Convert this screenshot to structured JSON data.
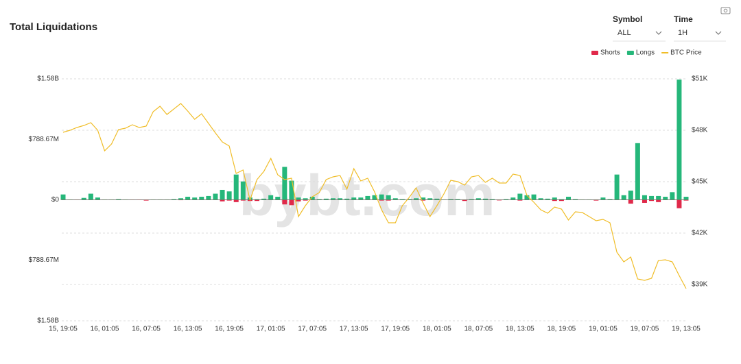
{
  "header": {
    "title": "Total Liquidations"
  },
  "controls": [
    {
      "label": "Symbol",
      "value": "ALL"
    },
    {
      "label": "Time",
      "value": "1H"
    }
  ],
  "watermark": "bybt.com",
  "chart_data": {
    "type": "bar",
    "categories": [
      "15, 19:05",
      null,
      null,
      null,
      null,
      null,
      "16, 01:05",
      null,
      null,
      null,
      null,
      null,
      "16, 07:05",
      null,
      null,
      null,
      null,
      null,
      "16, 13:05",
      null,
      null,
      null,
      null,
      null,
      "16, 19:05",
      null,
      null,
      null,
      null,
      null,
      "17, 01:05",
      null,
      null,
      null,
      null,
      null,
      "17, 07:05",
      null,
      null,
      null,
      null,
      null,
      "17, 13:05",
      null,
      null,
      null,
      null,
      null,
      "17, 19:05",
      null,
      null,
      null,
      null,
      null,
      "18, 01:05",
      null,
      null,
      null,
      null,
      null,
      "18, 07:05",
      null,
      null,
      null,
      null,
      null,
      "18, 13:05",
      null,
      null,
      null,
      null,
      null,
      "18, 19:05",
      null,
      null,
      null,
      null,
      null,
      "19, 01:05",
      null,
      null,
      null,
      null,
      null,
      "19, 07:05",
      null,
      null,
      null,
      null,
      null,
      "19, 13:05"
    ],
    "ylim": [
      -1580000000,
      1580000000
    ],
    "yticks": [
      {
        "value": 1580000000,
        "label": "$1.58B"
      },
      {
        "value": 788670000,
        "label": "$788.67M"
      },
      {
        "value": 0,
        "label": "$0"
      },
      {
        "value": -788670000,
        "label": "$788.67M"
      },
      {
        "value": -1580000000,
        "label": "$1.58B"
      }
    ],
    "y2lim": [
      36880,
      51000
    ],
    "y2ticks": [
      {
        "value": 51000,
        "label": "$51K"
      },
      {
        "value": 48000,
        "label": "$48K"
      },
      {
        "value": 45000,
        "label": "$45K"
      },
      {
        "value": 42000,
        "label": "$42K"
      },
      {
        "value": 39000,
        "label": "$39K"
      }
    ],
    "grid": true,
    "legend": "top-right",
    "series": [
      {
        "name": "Shorts",
        "type": "bar",
        "color": "#e0294a",
        "values": [
          -3000000,
          -3000000,
          -3000000,
          -3000000,
          -3000000,
          -3000000,
          -3000000,
          -3000000,
          -3000000,
          -3000000,
          -3000000,
          -3000000,
          -10000000,
          -3000000,
          -3000000,
          -3000000,
          -3000000,
          -5000000,
          -3000000,
          -3000000,
          -3000000,
          -3000000,
          -3000000,
          -20000000,
          -10000000,
          -30000000,
          -10000000,
          -15000000,
          -15000000,
          -3000000,
          -3000000,
          -3000000,
          -60000000,
          -70000000,
          -20000000,
          -10000000,
          -3000000,
          -3000000,
          -3000000,
          -3000000,
          -3000000,
          -3000000,
          -3000000,
          -3000000,
          -3000000,
          -3000000,
          -10000000,
          -10000000,
          -3000000,
          -3000000,
          -3000000,
          -3000000,
          -10000000,
          -3000000,
          -3000000,
          -3000000,
          -3000000,
          -3000000,
          -15000000,
          -3000000,
          -3000000,
          -3000000,
          -3000000,
          -8000000,
          -3000000,
          -3000000,
          -10000000,
          -3000000,
          -3000000,
          -3000000,
          -3000000,
          -15000000,
          -15000000,
          -3000000,
          -3000000,
          -3000000,
          -3000000,
          -10000000,
          -3000000,
          -3000000,
          -3000000,
          -3000000,
          -50000000,
          -3000000,
          -40000000,
          -15000000,
          -30000000,
          -3000000,
          -3000000,
          -110000000,
          -10000000
        ]
      },
      {
        "name": "Longs",
        "type": "bar",
        "color": "#25b77a",
        "values": [
          70000000,
          5000000,
          3000000,
          25000000,
          80000000,
          30000000,
          5000000,
          5000000,
          10000000,
          5000000,
          3000000,
          2000000,
          3000000,
          5000000,
          5000000,
          5000000,
          10000000,
          20000000,
          40000000,
          30000000,
          40000000,
          50000000,
          80000000,
          130000000,
          110000000,
          330000000,
          240000000,
          30000000,
          10000000,
          15000000,
          60000000,
          40000000,
          430000000,
          250000000,
          30000000,
          20000000,
          40000000,
          10000000,
          15000000,
          20000000,
          20000000,
          15000000,
          30000000,
          30000000,
          50000000,
          60000000,
          70000000,
          60000000,
          20000000,
          10000000,
          10000000,
          20000000,
          30000000,
          20000000,
          15000000,
          5000000,
          10000000,
          10000000,
          5000000,
          10000000,
          20000000,
          15000000,
          10000000,
          5000000,
          10000000,
          30000000,
          80000000,
          60000000,
          70000000,
          20000000,
          15000000,
          30000000,
          10000000,
          40000000,
          10000000,
          5000000,
          5000000,
          5000000,
          30000000,
          10000000,
          330000000,
          60000000,
          120000000,
          740000000,
          60000000,
          50000000,
          50000000,
          40000000,
          100000000,
          1570000000,
          40000000
        ]
      },
      {
        "name": "BTC Price",
        "type": "line",
        "axis": "y2",
        "color": "#f0bd28",
        "values": [
          47880,
          48000,
          48160,
          48280,
          48440,
          48000,
          46800,
          47200,
          48040,
          48120,
          48320,
          48160,
          48240,
          49080,
          49400,
          48920,
          49240,
          49560,
          49120,
          48640,
          48960,
          48400,
          47840,
          47320,
          47080,
          45480,
          45680,
          43920,
          45120,
          45600,
          46360,
          45400,
          45120,
          45200,
          42960,
          43600,
          44120,
          44360,
          45120,
          45280,
          45360,
          44560,
          45760,
          45040,
          45200,
          44400,
          43360,
          42600,
          42600,
          43600,
          44080,
          44640,
          43760,
          42960,
          43600,
          44280,
          45080,
          45000,
          44800,
          45280,
          45360,
          44960,
          45200,
          44920,
          44920,
          45440,
          45360,
          44200,
          43800,
          43360,
          43160,
          43520,
          43400,
          42760,
          43240,
          43200,
          42960,
          42720,
          42800,
          42600,
          40880,
          40320,
          40600,
          39320,
          39240,
          39360,
          40400,
          40440,
          40320,
          39520,
          38760
        ]
      }
    ]
  }
}
